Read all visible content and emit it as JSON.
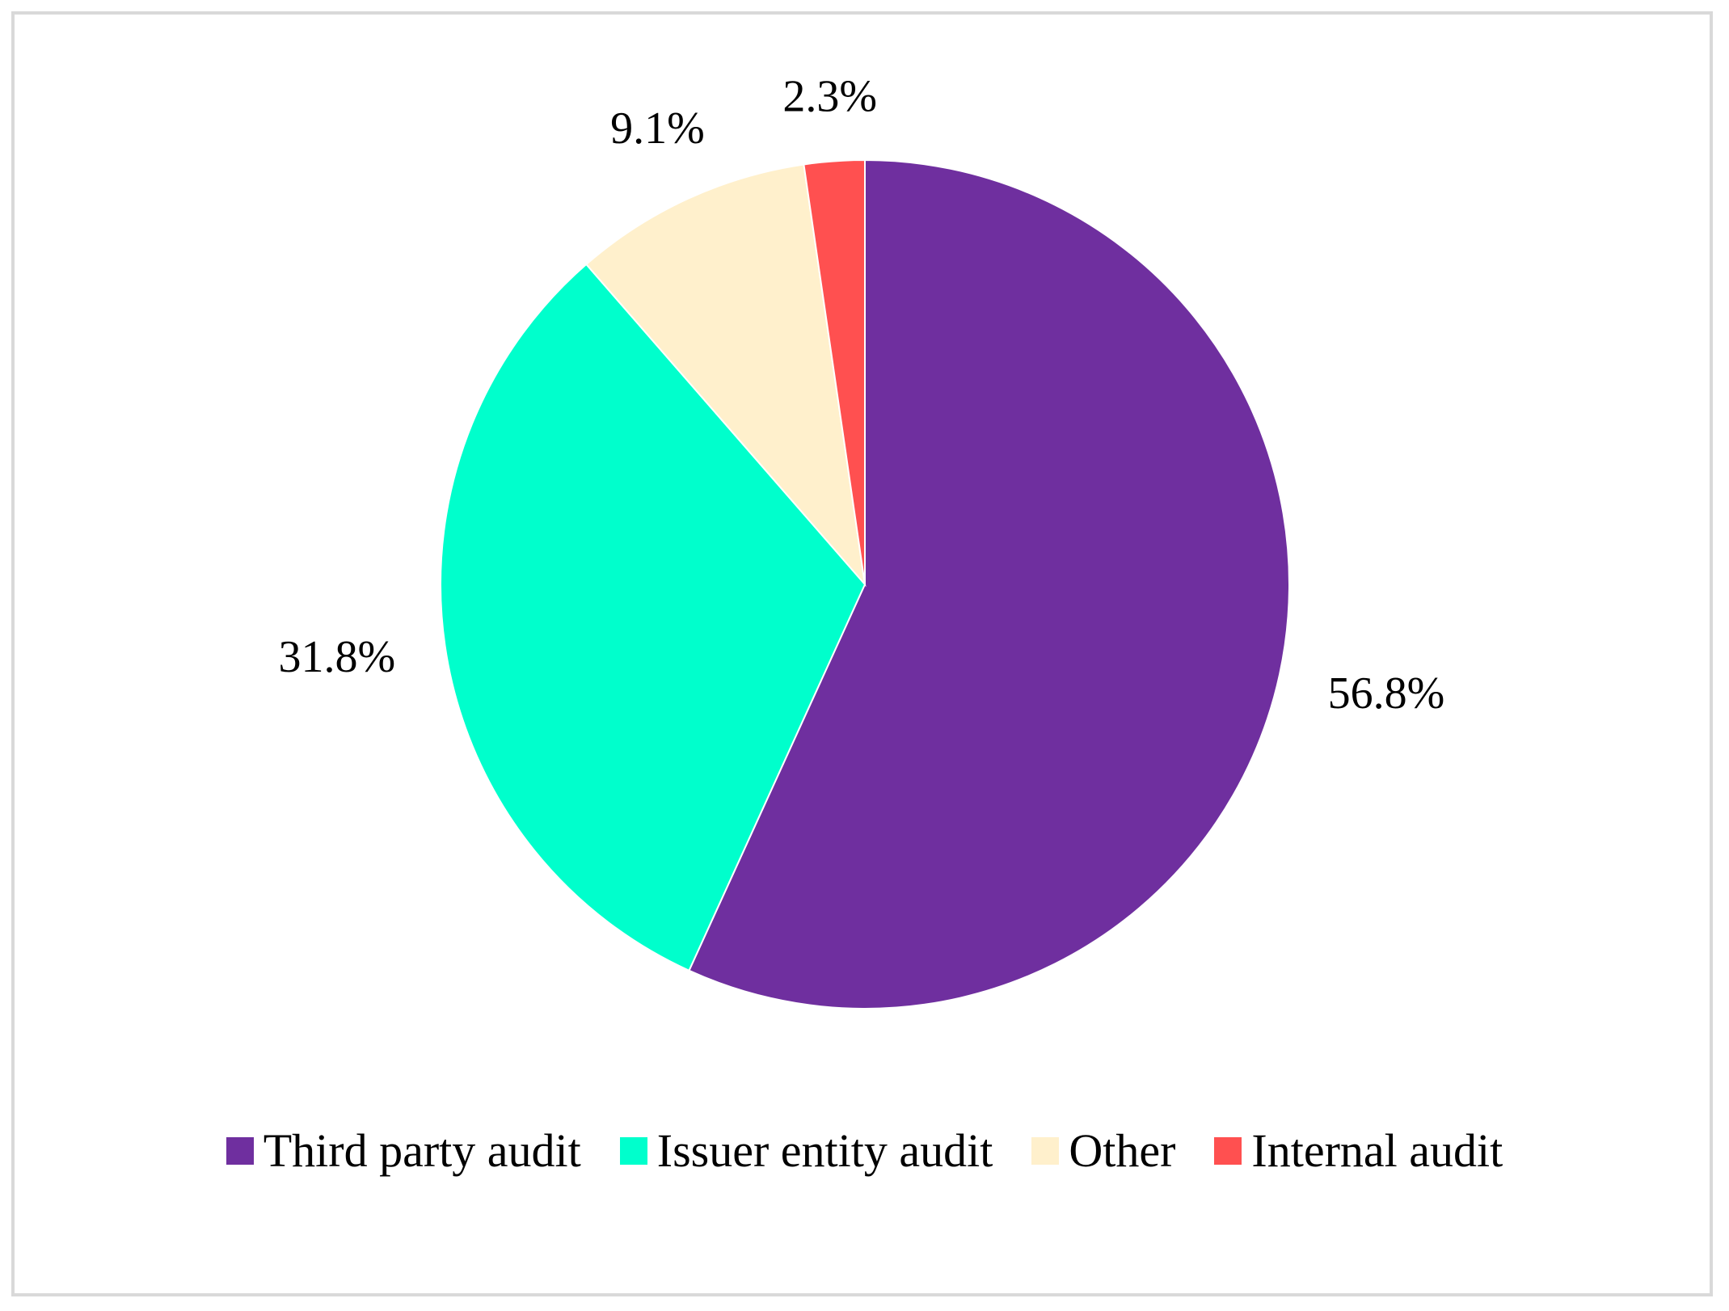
{
  "chart_data": {
    "type": "pie",
    "title": "",
    "start_angle_deg": 0,
    "direction": "clockwise",
    "slices": [
      {
        "label": "Third party audit",
        "value": 56.8,
        "display": "56.8%",
        "color": "#6f2f9f"
      },
      {
        "label": "Issuer entity audit",
        "value": 31.8,
        "display": "31.8%",
        "color": "#00ffcc"
      },
      {
        "label": "Other",
        "value": 9.1,
        "display": "9.1%",
        "color": "#fff0cc"
      },
      {
        "label": "Internal audit",
        "value": 2.3,
        "display": "2.3%",
        "color": "#ff5050"
      }
    ],
    "legend_position": "bottom"
  }
}
